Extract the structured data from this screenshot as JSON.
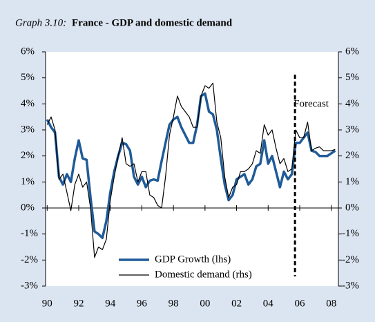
{
  "chart_data": {
    "type": "line",
    "title_prefix": "Graph 3.10:",
    "title": "France - GDP and domestic demand",
    "annotation": "Forecast",
    "forecast_start": 2005.7,
    "x": [
      1990,
      1990.25,
      1990.5,
      1990.75,
      1991,
      1991.25,
      1991.5,
      1991.75,
      1992,
      1992.25,
      1992.5,
      1992.75,
      1993,
      1993.25,
      1993.5,
      1993.75,
      1994,
      1994.25,
      1994.5,
      1994.75,
      1995,
      1995.25,
      1995.5,
      1995.75,
      1996,
      1996.25,
      1996.5,
      1996.75,
      1997,
      1997.25,
      1997.5,
      1997.75,
      1998,
      1998.25,
      1998.5,
      1998.75,
      1999,
      1999.25,
      1999.5,
      1999.75,
      2000,
      2000.25,
      2000.5,
      2000.75,
      2001,
      2001.25,
      2001.5,
      2001.75,
      2002,
      2002.25,
      2002.5,
      2002.75,
      2003,
      2003.25,
      2003.5,
      2003.75,
      2004,
      2004.25,
      2004.5,
      2004.75,
      2005,
      2005.25,
      2005.5,
      2005.75,
      2006,
      2006.25,
      2006.5,
      2006.75,
      2007,
      2007.25,
      2007.5,
      2007.75,
      2008,
      2008.25
    ],
    "series": [
      {
        "name": "GDP Growth (lhs)",
        "color": "#1f5b99",
        "axis": "y",
        "values": [
          3.4,
          3.1,
          2.9,
          1.2,
          0.9,
          1.3,
          1.0,
          1.9,
          2.6,
          1.9,
          1.85,
          0.4,
          -0.9,
          -1.0,
          -1.15,
          -0.5,
          0.6,
          1.4,
          2.0,
          2.5,
          2.45,
          2.2,
          1.2,
          0.9,
          1.2,
          0.8,
          1.05,
          1.1,
          1.05,
          1.8,
          2.5,
          3.2,
          3.4,
          3.5,
          3.1,
          2.8,
          2.5,
          2.5,
          3.2,
          4.3,
          4.4,
          3.7,
          3.6,
          3.0,
          1.9,
          0.9,
          0.3,
          0.5,
          1.1,
          1.2,
          1.3,
          0.9,
          1.1,
          1.6,
          1.7,
          2.6,
          1.7,
          2.0,
          1.4,
          0.8,
          1.4,
          1.1,
          1.3,
          2.5,
          2.5,
          2.7,
          2.9,
          2.2,
          2.15,
          2.0,
          2.0,
          2.0,
          2.1,
          2.2
        ]
      },
      {
        "name": "Domestic demand (rhs)",
        "color": "#000000",
        "axis": "y2",
        "values": [
          3.2,
          3.5,
          3.0,
          1.1,
          1.3,
          0.6,
          -0.1,
          0.9,
          1.3,
          0.8,
          1.0,
          0.0,
          -1.9,
          -1.5,
          -1.6,
          -1.2,
          0.3,
          1.2,
          2.0,
          2.7,
          1.7,
          1.6,
          1.7,
          1.0,
          1.4,
          1.4,
          0.5,
          0.4,
          0.1,
          0.0,
          1.2,
          2.8,
          3.5,
          4.3,
          3.9,
          3.7,
          3.5,
          3.1,
          3.1,
          4.3,
          4.7,
          4.6,
          4.8,
          3.3,
          2.7,
          1.2,
          0.4,
          0.8,
          0.9,
          1.4,
          1.4,
          1.5,
          1.7,
          2.2,
          2.1,
          3.2,
          2.8,
          3.0,
          2.3,
          1.7,
          1.9,
          1.4,
          1.5,
          3.0,
          2.7,
          2.7,
          3.3,
          2.2,
          2.3,
          2.35,
          2.2,
          2.2,
          2.2,
          2.25
        ]
      }
    ],
    "xlim": [
      1989.9,
      2008.45
    ],
    "xticks": [
      {
        "value": 1990,
        "label": "90"
      },
      {
        "value": 1992,
        "label": "92"
      },
      {
        "value": 1994,
        "label": "94"
      },
      {
        "value": 1996,
        "label": "96"
      },
      {
        "value": 1998,
        "label": "98"
      },
      {
        "value": 2000,
        "label": "00"
      },
      {
        "value": 2002,
        "label": "02"
      },
      {
        "value": 2004,
        "label": "04"
      },
      {
        "value": 2006,
        "label": "06"
      },
      {
        "value": 2008,
        "label": "08"
      }
    ],
    "ylim": [
      -3,
      6
    ],
    "yticks": [
      {
        "value": 6,
        "label": "6%"
      },
      {
        "value": 5,
        "label": "5%"
      },
      {
        "value": 4,
        "label": "4%"
      },
      {
        "value": 3,
        "label": "3%"
      },
      {
        "value": 2,
        "label": "2%"
      },
      {
        "value": 1,
        "label": "1%"
      },
      {
        "value": 0,
        "label": "0%"
      },
      {
        "value": -1,
        "label": "-1%"
      },
      {
        "value": -2,
        "label": "-2%"
      },
      {
        "value": -3,
        "label": "-3%"
      }
    ],
    "y2lim": [
      -3,
      6
    ],
    "y2ticks": [
      {
        "value": 6,
        "label": "6%"
      },
      {
        "value": 5,
        "label": "5%"
      },
      {
        "value": 4,
        "label": "4%"
      },
      {
        "value": 3,
        "label": "3%"
      },
      {
        "value": 2,
        "label": "2%"
      },
      {
        "value": 1,
        "label": "1%"
      },
      {
        "value": 0,
        "label": "0%"
      },
      {
        "value": -1,
        "label": "-1%"
      },
      {
        "value": -2,
        "label": "-2%"
      },
      {
        "value": -3,
        "label": "-3%"
      }
    ]
  }
}
